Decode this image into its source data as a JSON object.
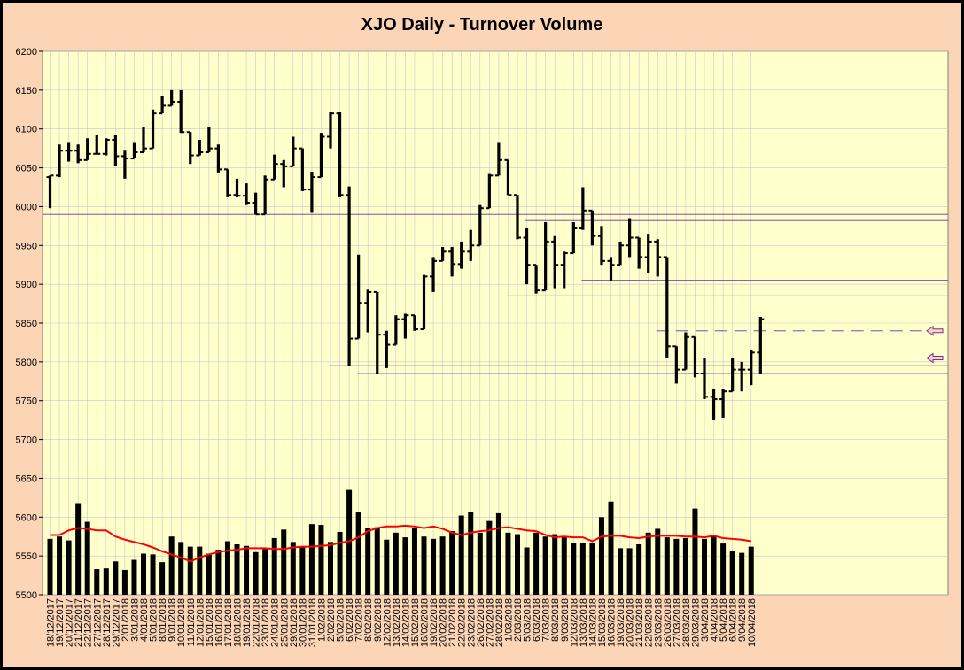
{
  "chart_data": {
    "type": "ohlc",
    "title": "XJO Daily - Turnover Volume",
    "ylim": [
      5500,
      6200
    ],
    "yticks": [
      5500,
      5550,
      5600,
      5650,
      5700,
      5750,
      5800,
      5850,
      5900,
      5950,
      6000,
      6050,
      6100,
      6150,
      6200
    ],
    "dates": [
      "18/12/2017",
      "19/12/2017",
      "20/12/2017",
      "21/12/2017",
      "22/12/2017",
      "27/12/2017",
      "28/12/2017",
      "29/12/2017",
      "2/01/2018",
      "3/01/2018",
      "4/01/2018",
      "5/01/2018",
      "8/01/2018",
      "9/01/2018",
      "10/01/2018",
      "11/01/2018",
      "12/01/2018",
      "15/01/2018",
      "16/01/2018",
      "17/01/2018",
      "18/01/2018",
      "19/01/2018",
      "22/01/2018",
      "23/01/2018",
      "24/01/2018",
      "25/01/2018",
      "29/01/2018",
      "30/01/2018",
      "31/01/2018",
      "1/02/2018",
      "2/02/2018",
      "5/02/2018",
      "6/02/2018",
      "7/02/2018",
      "8/02/2018",
      "9/02/2018",
      "12/02/2018",
      "13/02/2018",
      "14/02/2018",
      "15/02/2018",
      "16/02/2018",
      "19/02/2018",
      "20/02/2018",
      "21/02/2018",
      "22/02/2018",
      "23/02/2018",
      "26/02/2018",
      "27/02/2018",
      "28/02/2018",
      "1/03/2018",
      "2/03/2018",
      "5/03/2018",
      "6/03/2018",
      "7/03/2018",
      "8/03/2018",
      "9/03/2018",
      "12/03/2018",
      "13/03/2018",
      "14/03/2018",
      "15/03/2018",
      "16/03/2018",
      "19/03/2018",
      "20/03/2018",
      "21/03/2018",
      "22/03/2018",
      "23/03/2018",
      "26/03/2018",
      "27/03/2018",
      "28/03/2018",
      "29/03/2018",
      "3/04/2018",
      "4/04/2018",
      "5/04/2018",
      "6/04/2018",
      "9/04/2018",
      "10/04/2018"
    ],
    "xtick_labels": [
      "18/12/2017",
      "19/12/2017",
      "20/12/2017",
      "21/12/2017",
      "22/12/2017",
      "27/12/2017",
      "28/12/2017",
      "29/12/2017",
      "2/01/2018",
      "3/01/2018",
      "4/01/2018",
      "5/01/2018",
      "8/01/2018",
      "9/01/2018",
      "10/01/2018",
      "11/01/2018",
      "12/01/2018",
      "15/01/2018",
      "16/01/2018",
      "17/01/2018",
      "18/01/2018",
      "19/01/2018",
      "22/01/2018",
      "23/01/2018",
      "24/01/2018",
      "25/01/2018",
      "29/01/2018",
      "30/01/2018",
      "31/01/2018",
      "1/02/2018",
      "2/02/2018",
      "5/02/2018",
      "6/02/2018",
      "7/02/2018",
      "8/02/2018",
      "9/02/2018",
      "12/02/2018",
      "13/02/2018",
      "14/02/2018",
      "15/02/2018",
      "16/02/2018",
      "19/02/2018",
      "20/02/2018",
      "21/02/2018",
      "22/02/2018",
      "23/02/2018",
      "26/02/2018",
      "27/02/2018",
      "28/02/2018",
      "1/03/2018",
      "2/03/2018",
      "5/03/2018",
      "6/03/2018",
      "7/03/2018",
      "8/03/2018",
      "9/03/2018",
      "12/03/2018",
      "13/03/2018",
      "14/03/2018",
      "15/03/2018",
      "16/03/2018",
      "19/03/2018",
      "20/03/2018",
      "21/03/2018",
      "22/03/2018",
      "23/03/2018",
      "26/03/2018",
      "27/03/2018",
      "28/03/2018",
      "29/03/2018",
      "3/04/2018",
      "4/04/2018",
      "5/04/2018",
      "6/04/2018",
      "9/04/2018",
      "10/04/2018"
    ],
    "ohlc": [
      [
        6038,
        6040,
        5998,
        6040
      ],
      [
        6040,
        6080,
        6038,
        6072
      ],
      [
        6072,
        6082,
        6058,
        6072
      ],
      [
        6072,
        6080,
        6056,
        6060
      ],
      [
        6060,
        6088,
        6060,
        6068
      ],
      [
        6068,
        6092,
        6068,
        6068
      ],
      [
        6068,
        6088,
        6066,
        6086
      ],
      [
        6086,
        6092,
        6052,
        6065
      ],
      [
        6065,
        6072,
        6036,
        6062
      ],
      [
        6062,
        6082,
        6062,
        6070
      ],
      [
        6070,
        6102,
        6070,
        6075
      ],
      [
        6075,
        6125,
        6075,
        6120
      ],
      [
        6120,
        6142,
        6120,
        6130
      ],
      [
        6130,
        6150,
        6130,
        6135
      ],
      [
        6135,
        6150,
        6095,
        6096
      ],
      [
        6096,
        6096,
        6055,
        6066
      ],
      [
        6066,
        6086,
        6066,
        6070
      ],
      [
        6070,
        6102,
        6070,
        6075
      ],
      [
        6075,
        6080,
        6044,
        6048
      ],
      [
        6048,
        6048,
        6012,
        6015
      ],
      [
        6015,
        6036,
        6012,
        6014
      ],
      [
        6014,
        6030,
        6002,
        6005
      ],
      [
        6005,
        6018,
        5990,
        5990
      ],
      [
        5990,
        6040,
        5990,
        6035
      ],
      [
        6035,
        6067,
        6035,
        6055
      ],
      [
        6055,
        6060,
        6025,
        6052
      ],
      [
        6052,
        6090,
        6052,
        6075
      ],
      [
        6075,
        6075,
        6020,
        6022
      ],
      [
        6022,
        6045,
        5992,
        6038
      ],
      [
        6038,
        6095,
        6038,
        6090
      ],
      [
        6090,
        6122,
        6075,
        6120
      ],
      [
        6120,
        6122,
        6012,
        6015
      ],
      [
        6015,
        6026,
        5795,
        5830
      ],
      [
        5830,
        5938,
        5830,
        5876
      ],
      [
        5876,
        5893,
        5838,
        5890
      ],
      [
        5890,
        5890,
        5785,
        5835
      ],
      [
        5835,
        5840,
        5792,
        5822
      ],
      [
        5822,
        5860,
        5822,
        5855
      ],
      [
        5855,
        5862,
        5830,
        5860
      ],
      [
        5860,
        5860,
        5840,
        5842
      ],
      [
        5842,
        5912,
        5842,
        5910
      ],
      [
        5910,
        5935,
        5890,
        5930
      ],
      [
        5930,
        5948,
        5930,
        5942
      ],
      [
        5942,
        5948,
        5910,
        5926
      ],
      [
        5926,
        5955,
        5920,
        5942
      ],
      [
        5942,
        5970,
        5930,
        5950
      ],
      [
        5950,
        6002,
        5950,
        5998
      ],
      [
        5998,
        6042,
        5998,
        6040
      ],
      [
        6040,
        6082,
        6040,
        6060
      ],
      [
        6060,
        6060,
        6015,
        6015
      ],
      [
        6015,
        6015,
        5958,
        5960
      ],
      [
        5960,
        5972,
        5900,
        5925
      ],
      [
        5925,
        5925,
        5888,
        5892
      ],
      [
        5892,
        5980,
        5892,
        5955
      ],
      [
        5955,
        5962,
        5895,
        5925
      ],
      [
        5925,
        5942,
        5895,
        5940
      ],
      [
        5940,
        5980,
        5940,
        5972
      ],
      [
        5972,
        6025,
        5970,
        5995
      ],
      [
        5995,
        5995,
        5950,
        5962
      ],
      [
        5962,
        5975,
        5925,
        5930
      ],
      [
        5930,
        5935,
        5905,
        5925
      ],
      [
        5925,
        5955,
        5925,
        5950
      ],
      [
        5950,
        5985,
        5935,
        5960
      ],
      [
        5960,
        5960,
        5920,
        5935
      ],
      [
        5935,
        5965,
        5915,
        5955
      ],
      [
        5955,
        5958,
        5910,
        5935
      ],
      [
        5935,
        5935,
        5805,
        5820
      ],
      [
        5820,
        5820,
        5772,
        5790
      ],
      [
        5790,
        5838,
        5790,
        5832
      ],
      [
        5832,
        5832,
        5780,
        5785
      ],
      [
        5785,
        5805,
        5752,
        5755
      ],
      [
        5755,
        5765,
        5725,
        5752
      ],
      [
        5752,
        5765,
        5728,
        5762
      ],
      [
        5762,
        5805,
        5762,
        5790
      ],
      [
        5790,
        5800,
        5762,
        5790
      ],
      [
        5790,
        5815,
        5770,
        5812
      ],
      [
        5812,
        5858,
        5785,
        5855
      ]
    ],
    "volume": [
      5572,
      5575,
      5570,
      5618,
      5594,
      5533,
      5534,
      5543,
      5532,
      5545,
      5553,
      5552,
      5542,
      5575,
      5568,
      5562,
      5562,
      5553,
      5558,
      5569,
      5565,
      5563,
      5555,
      5559,
      5573,
      5584,
      5568,
      5562,
      5591,
      5590,
      5568,
      5581,
      5635,
      5606,
      5586,
      5587,
      5571,
      5580,
      5574,
      5586,
      5575,
      5572,
      5575,
      5582,
      5602,
      5607,
      5580,
      5595,
      5605,
      5580,
      5578,
      5561,
      5580,
      5575,
      5578,
      5574,
      5567,
      5567,
      5567,
      5600,
      5620,
      5560,
      5560,
      5565,
      5580,
      5585,
      5574,
      5572,
      5573,
      5611,
      5572,
      5575,
      5566,
      5556,
      5554,
      5562
    ],
    "volume_ma": [
      5577,
      5577,
      5583,
      5586,
      5585,
      5583,
      5583,
      5575,
      5571,
      5568,
      5565,
      5561,
      5556,
      5552,
      5548,
      5543,
      5548,
      5552,
      5555,
      5557,
      5558,
      5560,
      5560,
      5560,
      5559,
      5559,
      5561,
      5562,
      5562,
      5563,
      5564,
      5567,
      5569,
      5574,
      5582,
      5586,
      5588,
      5588,
      5589,
      5588,
      5586,
      5588,
      5585,
      5580,
      5577,
      5580,
      5582,
      5583,
      5586,
      5587,
      5585,
      5583,
      5582,
      5577,
      5574,
      5575,
      5574,
      5574,
      5569,
      5575,
      5576,
      5576,
      5574,
      5573,
      5575,
      5576,
      5576,
      5576,
      5575,
      5575,
      5574,
      5576,
      5573,
      5572,
      5571,
      5569
    ],
    "horizontal_levels": [
      {
        "price": 5990,
        "from": "18/12/2017",
        "to": "10/04/2018",
        "style": "solid"
      },
      {
        "price": 5982,
        "from": "6/03/2018",
        "to": "10/04/2018",
        "style": "solid"
      },
      {
        "price": 5905,
        "from": "14/03/2018",
        "to": "10/04/2018",
        "style": "solid"
      },
      {
        "price": 5885,
        "from": "2/03/2018",
        "to": "10/04/2018",
        "style": "solid"
      },
      {
        "price": 5840,
        "from": "26/03/2018",
        "to": "10/04/2018",
        "style": "dashed",
        "marker": "arrow-left"
      },
      {
        "price": 5805,
        "from": "27/03/2018",
        "to": "10/04/2018",
        "style": "solid",
        "marker": "arrow-left"
      },
      {
        "price": 5795,
        "from": "5/02/2018",
        "to": "10/04/2018",
        "style": "solid"
      },
      {
        "price": 5785,
        "from": "8/02/2018",
        "to": "10/04/2018",
        "style": "solid"
      }
    ],
    "grid": true,
    "colors": {
      "background": "#fbd5b5",
      "plot": "#ffffcc",
      "bar": "#000000",
      "ma": "#ff0000",
      "level": "#7030a0",
      "grid": "#c8c8c8"
    }
  }
}
